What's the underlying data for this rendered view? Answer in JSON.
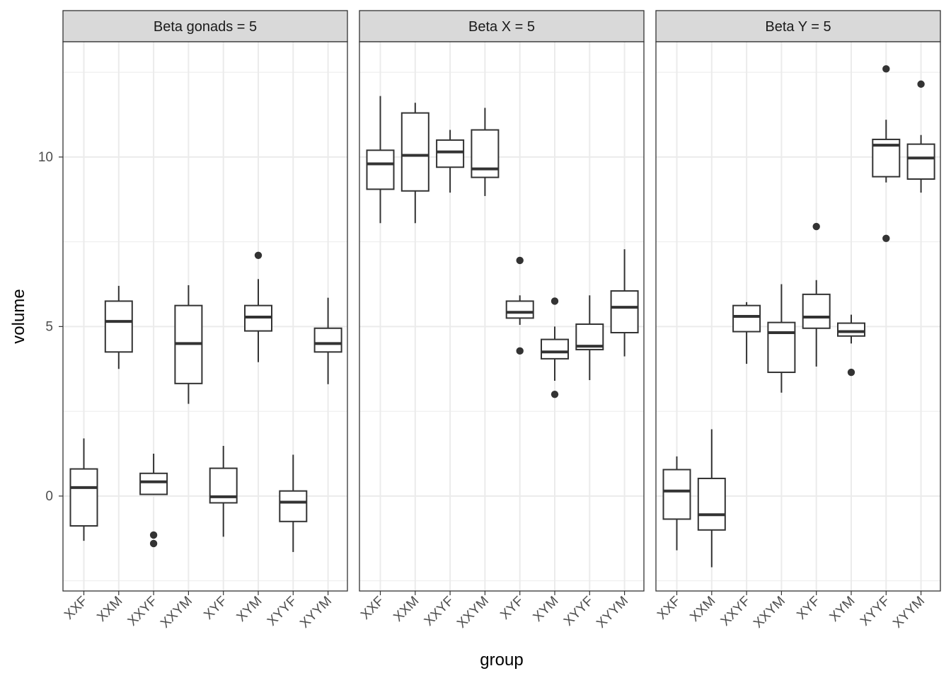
{
  "chart_data": {
    "type": "boxplot",
    "xlabel": "group",
    "ylabel": "volume",
    "categories": [
      "XXF",
      "XXM",
      "XXYF",
      "XXYM",
      "XYF",
      "XYM",
      "XYYF",
      "XYYM"
    ],
    "y_ticks": [
      0,
      5,
      10
    ],
    "y_tick_labels": [
      "0",
      "5",
      "10"
    ],
    "ylim": [
      -2.8,
      13.4
    ],
    "grid": true,
    "panels": [
      {
        "title": "Beta gonads = 5",
        "boxes": [
          {
            "group": "XXF",
            "lower_whisker": -1.32,
            "q1": -0.88,
            "median": 0.25,
            "q3": 0.8,
            "upper_whisker": 1.7,
            "outliers": []
          },
          {
            "group": "XXM",
            "lower_whisker": 3.75,
            "q1": 4.25,
            "median": 5.15,
            "q3": 5.75,
            "upper_whisker": 6.2,
            "outliers": []
          },
          {
            "group": "XXYF",
            "lower_whisker": 0.05,
            "q1": 0.05,
            "median": 0.42,
            "q3": 0.67,
            "upper_whisker": 1.25,
            "outliers": [
              -1.15,
              -1.4
            ]
          },
          {
            "group": "XXYM",
            "lower_whisker": 2.72,
            "q1": 3.32,
            "median": 4.5,
            "q3": 5.62,
            "upper_whisker": 6.22,
            "outliers": []
          },
          {
            "group": "XYF",
            "lower_whisker": -1.2,
            "q1": -0.2,
            "median": -0.02,
            "q3": 0.82,
            "upper_whisker": 1.48,
            "outliers": []
          },
          {
            "group": "XYM",
            "lower_whisker": 3.95,
            "q1": 4.87,
            "median": 5.28,
            "q3": 5.62,
            "upper_whisker": 6.4,
            "outliers": [
              7.1
            ]
          },
          {
            "group": "XYYF",
            "lower_whisker": -1.65,
            "q1": -0.75,
            "median": -0.18,
            "q3": 0.15,
            "upper_whisker": 1.22,
            "outliers": []
          },
          {
            "group": "XYYM",
            "lower_whisker": 3.3,
            "q1": 4.25,
            "median": 4.5,
            "q3": 4.95,
            "upper_whisker": 5.85,
            "outliers": []
          }
        ]
      },
      {
        "title": "Beta X = 5",
        "boxes": [
          {
            "group": "XXF",
            "lower_whisker": 8.05,
            "q1": 9.05,
            "median": 9.8,
            "q3": 10.2,
            "upper_whisker": 11.8,
            "outliers": []
          },
          {
            "group": "XXM",
            "lower_whisker": 8.05,
            "q1": 9.0,
            "median": 10.05,
            "q3": 11.3,
            "upper_whisker": 11.6,
            "outliers": []
          },
          {
            "group": "XXYF",
            "lower_whisker": 8.95,
            "q1": 9.7,
            "median": 10.15,
            "q3": 10.5,
            "upper_whisker": 10.8,
            "outliers": []
          },
          {
            "group": "XXYM",
            "lower_whisker": 8.85,
            "q1": 9.4,
            "median": 9.65,
            "q3": 10.8,
            "upper_whisker": 11.45,
            "outliers": []
          },
          {
            "group": "XYF",
            "lower_whisker": 5.05,
            "q1": 5.25,
            "median": 5.42,
            "q3": 5.75,
            "upper_whisker": 5.92,
            "outliers": [
              6.95,
              4.28
            ]
          },
          {
            "group": "XYM",
            "lower_whisker": 3.4,
            "q1": 4.05,
            "median": 4.25,
            "q3": 4.62,
            "upper_whisker": 5.0,
            "outliers": [
              5.75,
              3.0
            ]
          },
          {
            "group": "XYYF",
            "lower_whisker": 3.42,
            "q1": 4.32,
            "median": 4.42,
            "q3": 5.07,
            "upper_whisker": 5.92,
            "outliers": []
          },
          {
            "group": "XYYM",
            "lower_whisker": 4.12,
            "q1": 4.82,
            "median": 5.57,
            "q3": 6.05,
            "upper_whisker": 7.28,
            "outliers": []
          }
        ]
      },
      {
        "title": "Beta Y = 5",
        "boxes": [
          {
            "group": "XXF",
            "lower_whisker": -1.6,
            "q1": -0.68,
            "median": 0.15,
            "q3": 0.78,
            "upper_whisker": 1.17,
            "outliers": []
          },
          {
            "group": "XXM",
            "lower_whisker": -2.1,
            "q1": -1.0,
            "median": -0.55,
            "q3": 0.52,
            "upper_whisker": 1.97,
            "outliers": []
          },
          {
            "group": "XXYF",
            "lower_whisker": 3.9,
            "q1": 4.85,
            "median": 5.3,
            "q3": 5.62,
            "upper_whisker": 5.72,
            "outliers": []
          },
          {
            "group": "XXYM",
            "lower_whisker": 3.05,
            "q1": 3.65,
            "median": 4.82,
            "q3": 5.12,
            "upper_whisker": 6.25,
            "outliers": []
          },
          {
            "group": "XYF",
            "lower_whisker": 3.82,
            "q1": 4.95,
            "median": 5.28,
            "q3": 5.95,
            "upper_whisker": 6.37,
            "outliers": [
              7.95
            ]
          },
          {
            "group": "XYM",
            "lower_whisker": 4.5,
            "q1": 4.72,
            "median": 4.85,
            "q3": 5.1,
            "upper_whisker": 5.35,
            "outliers": [
              3.65
            ]
          },
          {
            "group": "XYYF",
            "lower_whisker": 9.25,
            "q1": 9.42,
            "median": 10.35,
            "q3": 10.52,
            "upper_whisker": 11.1,
            "outliers": [
              12.6,
              7.6
            ]
          },
          {
            "group": "XYYM",
            "lower_whisker": 8.95,
            "q1": 9.35,
            "median": 9.97,
            "q3": 10.38,
            "upper_whisker": 10.65,
            "outliers": [
              12.15
            ]
          }
        ]
      }
    ]
  }
}
